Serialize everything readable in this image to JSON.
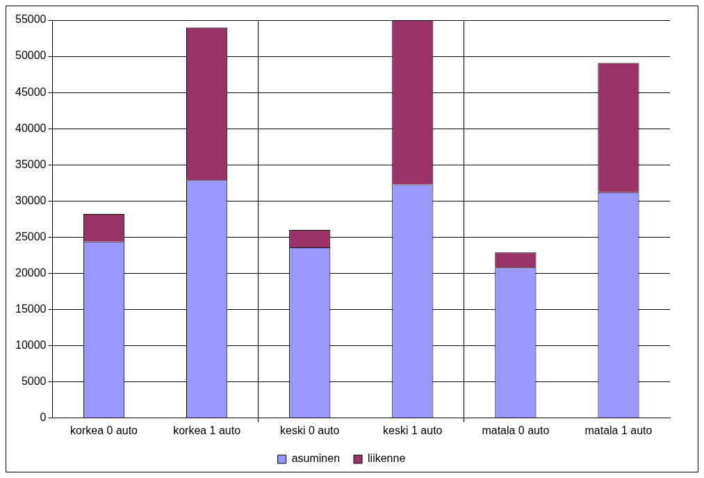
{
  "chart_data": {
    "type": "bar",
    "stacked": true,
    "categories": [
      "korkea 0 auto",
      "korkea 1 auto",
      "keski 0 auto",
      "keski 1 auto",
      "matala 0 auto",
      "matala 1 auto"
    ],
    "series": [
      {
        "name": "asuminen",
        "color": "#9999ff",
        "values": [
          24400,
          32900,
          23600,
          32300,
          20800,
          31200
        ]
      },
      {
        "name": "liikenne",
        "color": "#993366",
        "values": [
          3800,
          21100,
          2400,
          22700,
          2100,
          17900
        ]
      }
    ],
    "ylim": [
      0,
      55000
    ],
    "yticks": [
      0,
      5000,
      10000,
      15000,
      20000,
      25000,
      30000,
      35000,
      40000,
      45000,
      50000,
      55000
    ],
    "grid": true,
    "legend": "bottom"
  }
}
